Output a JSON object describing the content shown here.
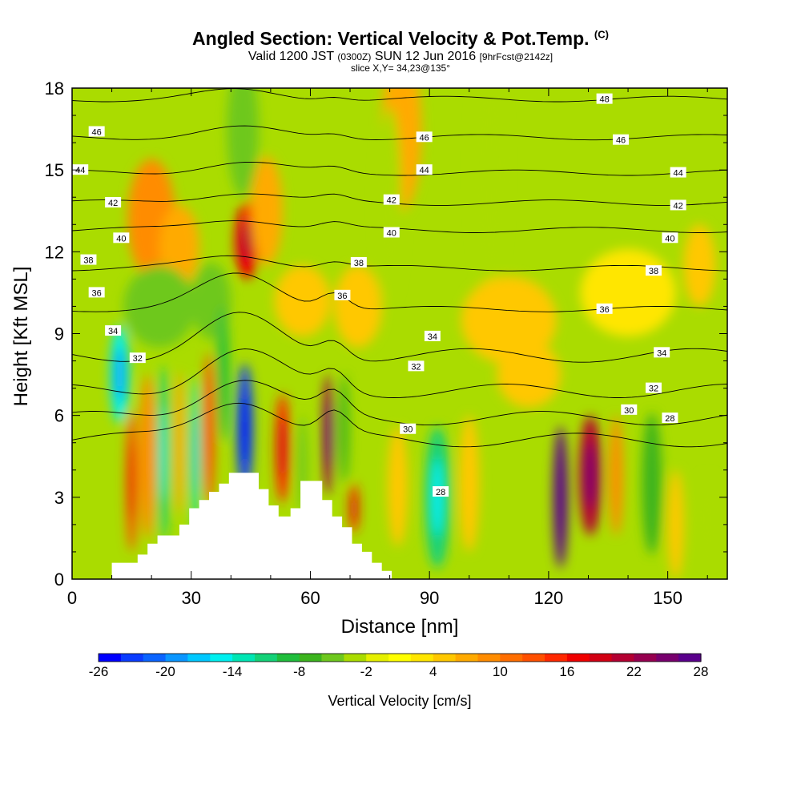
{
  "title": {
    "main": "Angled Section: Vertical Velocity & Pot.Temp.",
    "main_suffix": "(C)",
    "valid_prefix": "Valid 1200 JST",
    "valid_zulu": "(0300Z)",
    "valid_date": "SUN 12 Jun 2016",
    "forecast": "[9hrFcst@2142z]",
    "slice": "slice X,Y= 34,23@135°"
  },
  "chart_data": {
    "type": "heatmap",
    "xlabel": "Distance [nm]",
    "ylabel": "Height [Kft MSL]",
    "xlim": [
      0,
      165
    ],
    "ylim": [
      0,
      18
    ],
    "x_ticks": [
      "0",
      "30",
      "60",
      "90",
      "120",
      "150"
    ],
    "y_ticks": [
      "0",
      "3",
      "6",
      "9",
      "12",
      "15",
      "18"
    ],
    "colorbar": {
      "label": "Vertical Velocity [cm/s]",
      "min": -26,
      "max": 28,
      "step": 2,
      "tick_labels": [
        "-26",
        "-20",
        "-14",
        "-8",
        "-2",
        "4",
        "10",
        "16",
        "22",
        "28"
      ],
      "colors": [
        "#0000ff",
        "#0a3cff",
        "#0a64ff",
        "#0a96ff",
        "#00c8ff",
        "#00f0f0",
        "#00e6b4",
        "#14d278",
        "#20be3c",
        "#3cb41e",
        "#6ec81e",
        "#aadc00",
        "#e6f000",
        "#ffff00",
        "#ffe600",
        "#ffc800",
        "#ffaa00",
        "#ff8c00",
        "#ff6e00",
        "#ff5000",
        "#ff2800",
        "#f00000",
        "#d20014",
        "#b40032",
        "#960050",
        "#78006e",
        "#5a008c"
      ]
    },
    "isentropes": [
      {
        "label": "28",
        "y": 5.1
      },
      {
        "label": "30",
        "y": 5.9
      },
      {
        "label": "32",
        "y": 6.9
      },
      {
        "label": "34",
        "y": 8.2
      },
      {
        "label": "36",
        "y": 9.9
      },
      {
        "label": "38",
        "y": 11.4
      },
      {
        "label": "40",
        "y": 12.8
      },
      {
        "label": "42",
        "y": 13.8
      },
      {
        "label": "44",
        "y": 14.9
      },
      {
        "label": "46",
        "y": 16.2
      },
      {
        "label": "48",
        "y": 17.6
      }
    ],
    "contour_labels": [
      {
        "text": "46",
        "x": 3,
        "y": 16.4
      },
      {
        "text": "44",
        "x": 1,
        "y": 15.0
      },
      {
        "text": "42",
        "x": 5,
        "y": 13.8
      },
      {
        "text": "40",
        "x": 6,
        "y": 12.5
      },
      {
        "text": "38",
        "x": 2,
        "y": 11.7
      },
      {
        "text": "36",
        "x": 3,
        "y": 10.5
      },
      {
        "text": "34",
        "x": 5,
        "y": 9.1
      },
      {
        "text": "32",
        "x": 8,
        "y": 8.1
      },
      {
        "text": "46",
        "x": 43,
        "y": 16.2
      },
      {
        "text": "44",
        "x": 43,
        "y": 15.0
      },
      {
        "text": "42",
        "x": 39,
        "y": 13.9
      },
      {
        "text": "40",
        "x": 39,
        "y": 12.7
      },
      {
        "text": "38",
        "x": 35,
        "y": 11.6
      },
      {
        "text": "36",
        "x": 33,
        "y": 10.4
      },
      {
        "text": "34",
        "x": 44,
        "y": 8.9
      },
      {
        "text": "32",
        "x": 42,
        "y": 7.8
      },
      {
        "text": "30",
        "x": 41,
        "y": 5.5
      },
      {
        "text": "28",
        "x": 45,
        "y": 3.2
      },
      {
        "text": "48",
        "x": 65,
        "y": 17.6
      },
      {
        "text": "46",
        "x": 67,
        "y": 16.1
      },
      {
        "text": "44",
        "x": 74,
        "y": 14.9
      },
      {
        "text": "42",
        "x": 74,
        "y": 13.7
      },
      {
        "text": "40",
        "x": 73,
        "y": 12.5
      },
      {
        "text": "38",
        "x": 71,
        "y": 11.3
      },
      {
        "text": "36",
        "x": 65,
        "y": 9.9
      },
      {
        "text": "34",
        "x": 72,
        "y": 8.3
      },
      {
        "text": "32",
        "x": 71,
        "y": 7.0
      },
      {
        "text": "30",
        "x": 68,
        "y": 6.2
      },
      {
        "text": "28",
        "x": 73,
        "y": 5.9
      }
    ],
    "terrain": [
      [
        10,
        0.6
      ],
      [
        16.5,
        0.6
      ],
      [
        16.5,
        0.9
      ],
      [
        19,
        0.9
      ],
      [
        19,
        1.3
      ],
      [
        21.5,
        1.3
      ],
      [
        21.5,
        1.6
      ],
      [
        27,
        1.6
      ],
      [
        27,
        2.0
      ],
      [
        29.5,
        2.0
      ],
      [
        29.5,
        2.6
      ],
      [
        32,
        2.6
      ],
      [
        32,
        2.9
      ],
      [
        34.5,
        2.9
      ],
      [
        34.5,
        3.2
      ],
      [
        37,
        3.2
      ],
      [
        37,
        3.5
      ],
      [
        39.5,
        3.5
      ],
      [
        39.5,
        3.9
      ],
      [
        47,
        3.9
      ],
      [
        47,
        3.3
      ],
      [
        49.5,
        3.3
      ],
      [
        49.5,
        2.7
      ],
      [
        52,
        2.7
      ],
      [
        52,
        2.3
      ],
      [
        55,
        2.3
      ],
      [
        55,
        2.6
      ],
      [
        57.5,
        2.6
      ],
      [
        57.5,
        3.6
      ],
      [
        63,
        3.6
      ],
      [
        63,
        2.9
      ],
      [
        65.5,
        2.9
      ],
      [
        65.5,
        2.3
      ],
      [
        68,
        2.3
      ],
      [
        68,
        1.9
      ],
      [
        70.5,
        1.9
      ],
      [
        70.5,
        1.3
      ],
      [
        73,
        1.3
      ],
      [
        73,
        1.0
      ],
      [
        75.5,
        1.0
      ],
      [
        75.5,
        0.6
      ],
      [
        78,
        0.6
      ],
      [
        78,
        0.3
      ],
      [
        80.5,
        0.3
      ],
      [
        80.5,
        0
      ],
      [
        10,
        0
      ]
    ],
    "blobs": [
      {
        "x": 44,
        "y": 12.4,
        "rx": 3,
        "ry": 1.4,
        "v": 16
      },
      {
        "x": 20,
        "y": 13.2,
        "rx": 6,
        "ry": 2.2,
        "v": 8
      },
      {
        "x": 27,
        "y": 12.2,
        "rx": 5,
        "ry": 1.5,
        "v": 6
      },
      {
        "x": 49,
        "y": 13.5,
        "rx": 4,
        "ry": 2,
        "v": 5
      },
      {
        "x": 83,
        "y": 16.5,
        "rx": 5,
        "ry": 3,
        "v": 5
      },
      {
        "x": 43,
        "y": 16.5,
        "rx": 4,
        "ry": 2.5,
        "v": -6
      },
      {
        "x": 80,
        "y": 13.8,
        "rx": 3,
        "ry": 3.5,
        "v": -5
      },
      {
        "x": 105,
        "y": 15,
        "rx": 4,
        "ry": 4.5,
        "v": -5
      },
      {
        "x": 35,
        "y": 10.2,
        "rx": 5,
        "ry": 1.4,
        "v": -6
      },
      {
        "x": 22,
        "y": 10,
        "rx": 9,
        "ry": 1.5,
        "v": -6
      },
      {
        "x": 12,
        "y": 7.5,
        "rx": 2.4,
        "ry": 1.8,
        "v": -16
      },
      {
        "x": 15,
        "y": 3.6,
        "rx": 1.4,
        "ry": 2.6,
        "v": 12
      },
      {
        "x": 19,
        "y": 4.5,
        "rx": 2,
        "ry": 3,
        "v": 8
      },
      {
        "x": 23,
        "y": 4.6,
        "rx": 1.5,
        "ry": 3.2,
        "v": -12
      },
      {
        "x": 27,
        "y": 5,
        "rx": 1.2,
        "ry": 2.6,
        "v": 6
      },
      {
        "x": 31,
        "y": 4.6,
        "rx": 1.2,
        "ry": 2.8,
        "v": -14
      },
      {
        "x": 34.5,
        "y": 5.5,
        "rx": 1.4,
        "ry": 2.8,
        "v": 11
      },
      {
        "x": 38,
        "y": 7.5,
        "rx": 1.5,
        "ry": 2.5,
        "v": -10
      },
      {
        "x": 43.5,
        "y": 5.5,
        "rx": 2,
        "ry": 2.4,
        "v": -24
      },
      {
        "x": 53,
        "y": 4.8,
        "rx": 1.8,
        "ry": 2,
        "v": 14
      },
      {
        "x": 58,
        "y": 4.2,
        "rx": 1.2,
        "ry": 1.8,
        "v": -6
      },
      {
        "x": 64.5,
        "y": 5.3,
        "rx": 1.3,
        "ry": 2.2,
        "v": 22
      },
      {
        "x": 68.5,
        "y": 5.5,
        "rx": 1.2,
        "ry": 2,
        "v": -8
      },
      {
        "x": 71,
        "y": 2.6,
        "rx": 1.2,
        "ry": 0.9,
        "v": 14
      },
      {
        "x": 82,
        "y": 3.4,
        "rx": 2.5,
        "ry": 2.2,
        "v": 3
      },
      {
        "x": 92,
        "y": 3,
        "rx": 3.2,
        "ry": 2.6,
        "v": -12
      },
      {
        "x": 100,
        "y": 3.5,
        "rx": 2.5,
        "ry": 2.5,
        "v": 3
      },
      {
        "x": 123,
        "y": 3,
        "rx": 1.8,
        "ry": 2.6,
        "v": 27
      },
      {
        "x": 130.5,
        "y": 3.8,
        "rx": 2.8,
        "ry": 2.2,
        "v": 19
      },
      {
        "x": 137,
        "y": 3.8,
        "rx": 1.7,
        "ry": 2.2,
        "v": 8
      },
      {
        "x": 146,
        "y": 3.5,
        "rx": 2.5,
        "ry": 2.6,
        "v": -8
      },
      {
        "x": 152,
        "y": 2,
        "rx": 2,
        "ry": 2,
        "v": 4
      },
      {
        "x": 160,
        "y": 2.2,
        "rx": 3,
        "ry": 1.6,
        "v": -5
      },
      {
        "x": 110,
        "y": 9.5,
        "rx": 12,
        "ry": 1.6,
        "v": 3
      },
      {
        "x": 140,
        "y": 10.5,
        "rx": 12,
        "ry": 1.6,
        "v": 2
      },
      {
        "x": 115,
        "y": 7.5,
        "rx": 8,
        "ry": 1.2,
        "v": 3
      },
      {
        "x": 158,
        "y": 11.5,
        "rx": 4,
        "ry": 1.5,
        "v": 4
      },
      {
        "x": 58,
        "y": 10.2,
        "rx": 7,
        "ry": 1.3,
        "v": 4
      },
      {
        "x": 72,
        "y": 10,
        "rx": 6,
        "ry": 1.5,
        "v": 3
      }
    ]
  }
}
